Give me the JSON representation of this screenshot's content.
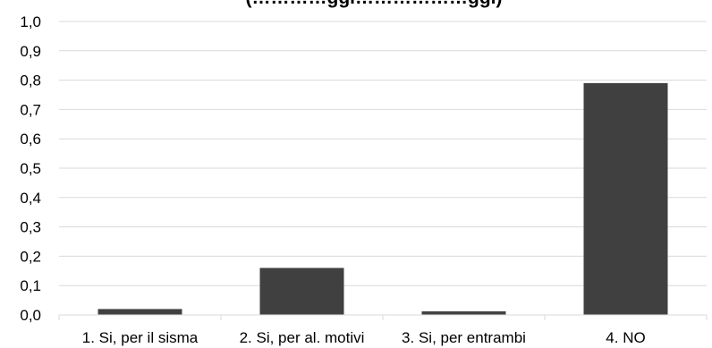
{
  "chart_data": {
    "type": "bar",
    "title": "(…………ggi………………ggi)",
    "categories": [
      "1. Si, per il sisma",
      "2. Si, per al. motivi",
      "3. Si, per entrambi",
      "4. NO"
    ],
    "values": [
      0.02,
      0.16,
      0.012,
      0.79
    ],
    "ylim": [
      0,
      1.0
    ],
    "yticks": [
      "0,0",
      "0,1",
      "0,2",
      "0,3",
      "0,4",
      "0,5",
      "0,6",
      "0,7",
      "0,8",
      "0,9",
      "1,0"
    ],
    "xlabel": "",
    "ylabel": "",
    "grid": true,
    "legend": "none",
    "bar_color": "#404040",
    "grid_color": "#d9d9d9"
  }
}
